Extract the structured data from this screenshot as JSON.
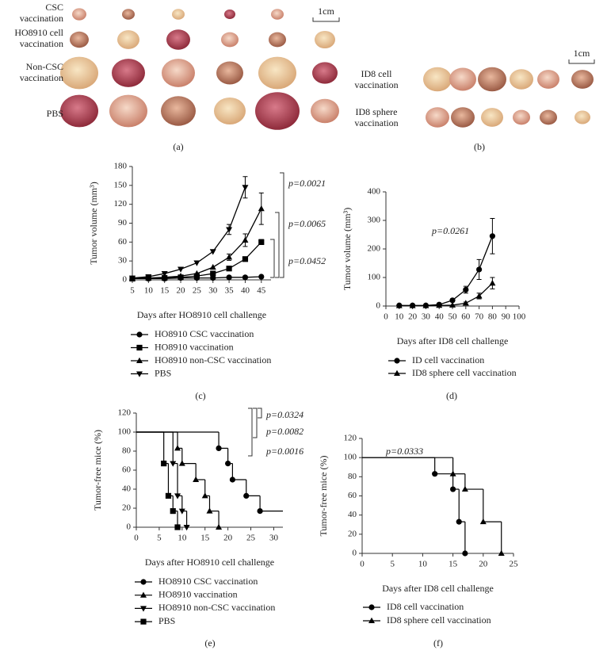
{
  "panel_a": {
    "label": "(a)",
    "scale": "1cm",
    "rows": [
      "CSC vaccination",
      "HO8910 cell vaccination",
      "Non-CSC vaccination",
      "PBS"
    ]
  },
  "panel_b": {
    "label": "(b)",
    "scale": "1cm",
    "rows": [
      "ID8 cell vaccination",
      "ID8 sphere vaccination"
    ]
  },
  "chart_data": [
    {
      "type": "line",
      "panel_label": "(c)",
      "xlabel": "Days after HO8910 cell challenge",
      "ylabel": "Tumor volume (mm³)",
      "x": [
        5,
        10,
        15,
        20,
        25,
        30,
        35,
        40,
        45
      ],
      "xlim": [
        5,
        48
      ],
      "xticks": [
        5,
        10,
        15,
        20,
        25,
        30,
        35,
        40,
        45
      ],
      "ylim": [
        0,
        180
      ],
      "yticks": [
        0,
        30,
        60,
        90,
        120,
        150,
        180
      ],
      "series": [
        {
          "name": "HO8910 CSC vaccination",
          "marker": "circle",
          "color": "#000000",
          "values": [
            2,
            2,
            2,
            3,
            3,
            3,
            4,
            4,
            5
          ]
        },
        {
          "name": "HO8910 vaccination",
          "marker": "square",
          "color": "#000000",
          "values": [
            2,
            3,
            3,
            4,
            6,
            10,
            18,
            33,
            60
          ],
          "errors": [
            null,
            null,
            null,
            null,
            null,
            null,
            null,
            2,
            4
          ]
        },
        {
          "name": "HO8910 non-CSC vaccination",
          "marker": "triangle-up",
          "color": "#000000",
          "values": [
            2,
            3,
            4,
            6,
            10,
            20,
            36,
            63,
            113
          ],
          "errors": [
            null,
            null,
            null,
            null,
            null,
            null,
            5,
            10,
            25
          ]
        },
        {
          "name": "PBS",
          "marker": "triangle-down",
          "color": "#000000",
          "values": [
            3,
            5,
            10,
            17,
            27,
            45,
            80,
            147,
            null
          ],
          "errors": [
            null,
            null,
            null,
            null,
            null,
            null,
            8,
            17,
            null
          ]
        }
      ],
      "annotations": [
        "p=0.0021",
        "p=0.0065",
        "p=0.0452"
      ]
    },
    {
      "type": "line",
      "panel_label": "(d)",
      "xlabel": "Days after ID8 cell challenge",
      "ylabel": "Tumor volume (mm³)",
      "x": [
        10,
        20,
        30,
        40,
        50,
        60,
        70,
        80
      ],
      "xlim": [
        0,
        100
      ],
      "xticks": [
        0,
        10,
        20,
        30,
        40,
        50,
        60,
        70,
        80,
        90,
        100
      ],
      "ylim": [
        0,
        400
      ],
      "yticks": [
        0,
        100,
        200,
        300,
        400
      ],
      "series": [
        {
          "name": "ID cell vaccination",
          "marker": "circle",
          "color": "#000000",
          "values": [
            2,
            2,
            2,
            5,
            20,
            57,
            128,
            245
          ],
          "errors": [
            null,
            null,
            null,
            null,
            5,
            12,
            35,
            62
          ]
        },
        {
          "name": "ID8 sphere cell vaccination",
          "marker": "triangle-up",
          "color": "#000000",
          "values": [
            1,
            1,
            1,
            2,
            3,
            10,
            35,
            80
          ],
          "errors": [
            null,
            null,
            null,
            null,
            null,
            4,
            10,
            20
          ]
        }
      ],
      "annotations": [
        "p=0.0261"
      ]
    },
    {
      "type": "step",
      "panel_label": "(e)",
      "xlabel": "Days after HO8910 cell challenge",
      "ylabel": "Tumor-free mice (%)",
      "xlim": [
        0,
        32
      ],
      "xticks": [
        0,
        5,
        10,
        15,
        20,
        25,
        30
      ],
      "ylim": [
        0,
        120
      ],
      "yticks": [
        0,
        20,
        40,
        60,
        80,
        100,
        120
      ],
      "series": [
        {
          "name": "HO8910 CSC vaccination",
          "marker": "circle",
          "color": "#000000",
          "x": [
            0,
            18,
            20,
            21,
            24,
            27
          ],
          "values": [
            100,
            83,
            67,
            50,
            33,
            17
          ]
        },
        {
          "name": "HO8910 vaccination",
          "marker": "triangle-up",
          "color": "#000000",
          "x": [
            0,
            9,
            10,
            13,
            15,
            16,
            18
          ],
          "values": [
            100,
            83,
            67,
            50,
            33,
            17,
            0
          ]
        },
        {
          "name": "HO8910 non-CSC vaccination",
          "marker": "triangle-down",
          "color": "#000000",
          "x": [
            0,
            8,
            9,
            10,
            11
          ],
          "values": [
            100,
            67,
            33,
            17,
            0
          ]
        },
        {
          "name": "PBS",
          "marker": "square",
          "color": "#000000",
          "x": [
            0,
            6,
            7,
            8,
            9
          ],
          "values": [
            100,
            67,
            33,
            17,
            0
          ]
        }
      ],
      "annotations": [
        "p=0.0324",
        "p=0.0082",
        "p=0.0016"
      ]
    },
    {
      "type": "step",
      "panel_label": "(f)",
      "xlabel": "Days after ID8 cell challenge",
      "ylabel": "Tumor-free mice (%)",
      "xlim": [
        0,
        25
      ],
      "xticks": [
        0,
        5,
        10,
        15,
        20,
        25
      ],
      "ylim": [
        0,
        120
      ],
      "yticks": [
        0,
        20,
        40,
        60,
        80,
        100,
        120
      ],
      "series": [
        {
          "name": "ID8 cell vaccination",
          "marker": "circle",
          "color": "#000000",
          "x": [
            0,
            12,
            15,
            16,
            17
          ],
          "values": [
            100,
            83,
            67,
            33,
            0
          ]
        },
        {
          "name": "ID8 sphere cell vaccination",
          "marker": "triangle-up",
          "color": "#000000",
          "x": [
            0,
            15,
            17,
            20,
            23
          ],
          "values": [
            100,
            83,
            67,
            33,
            0
          ]
        }
      ],
      "annotations": [
        "p=0.0333"
      ]
    }
  ]
}
